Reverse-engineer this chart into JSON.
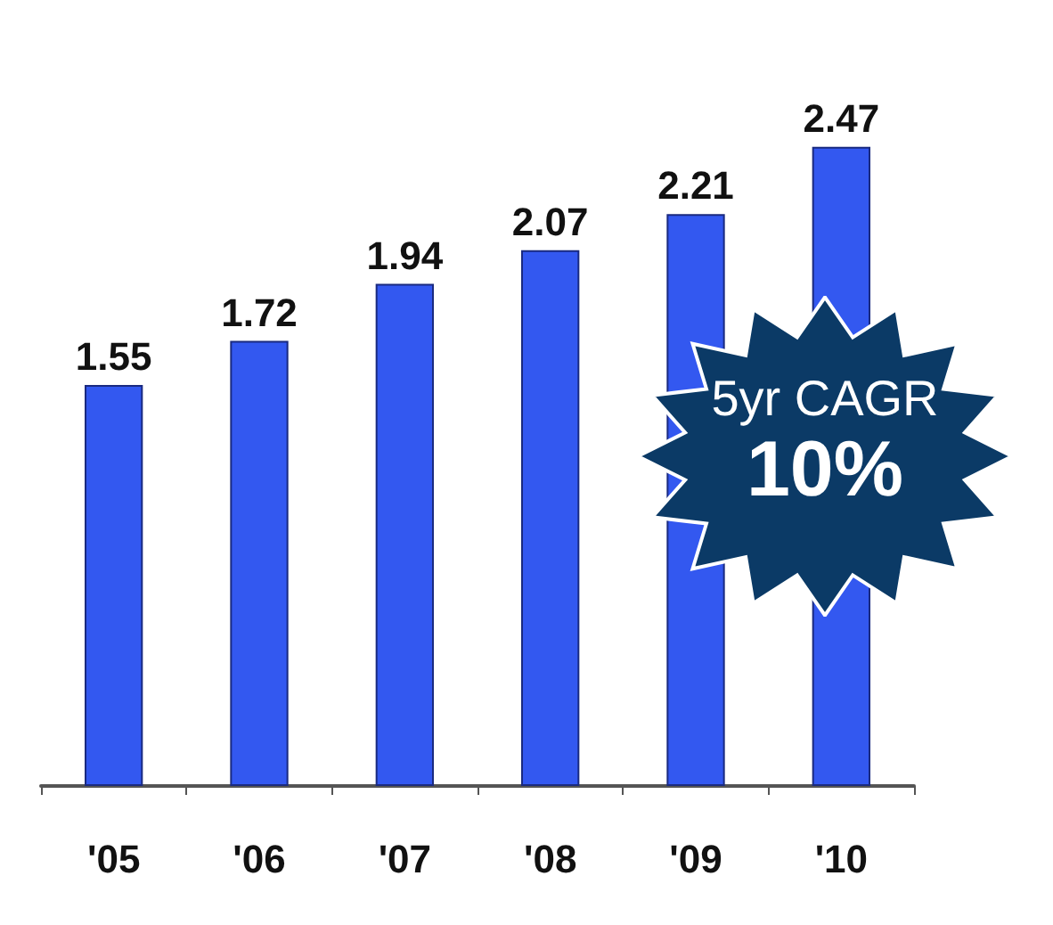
{
  "chart_data": {
    "type": "bar",
    "categories": [
      "'05",
      "'06",
      "'07",
      "'08",
      "'09",
      "'10"
    ],
    "values": [
      1.55,
      1.72,
      1.94,
      2.07,
      2.21,
      2.47
    ],
    "color": "#3358f0",
    "data_labels": true,
    "annotations": [
      "5yr CAGR",
      "10%"
    ]
  }
}
